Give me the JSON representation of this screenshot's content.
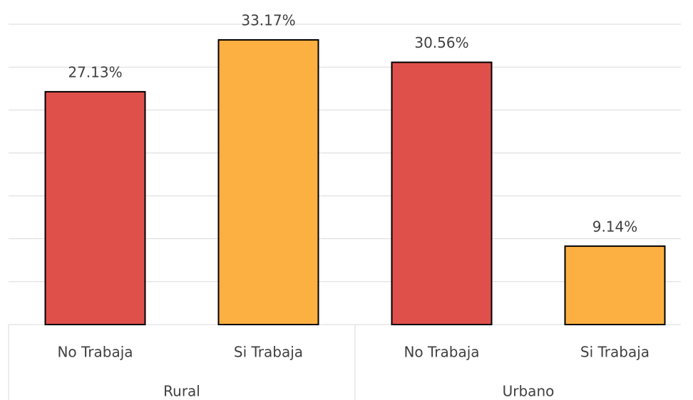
{
  "chart_data": {
    "type": "bar",
    "categories": [
      "No Trabaja",
      "Si Trabaja",
      "No Trabaja",
      "Si Trabaja"
    ],
    "groups": [
      "Rural",
      "Urbano"
    ],
    "values": [
      27.13,
      33.17,
      30.56,
      9.14
    ],
    "value_labels": [
      "27.13%",
      "33.17%",
      "30.56%",
      "9.14%"
    ],
    "colors": [
      "#e0504a",
      "#fdb042",
      "#e0504a",
      "#fdb042"
    ],
    "ylim": [
      0,
      35
    ],
    "yticks": [
      0,
      5,
      10,
      15,
      20,
      25,
      30,
      35
    ],
    "grid": true
  }
}
